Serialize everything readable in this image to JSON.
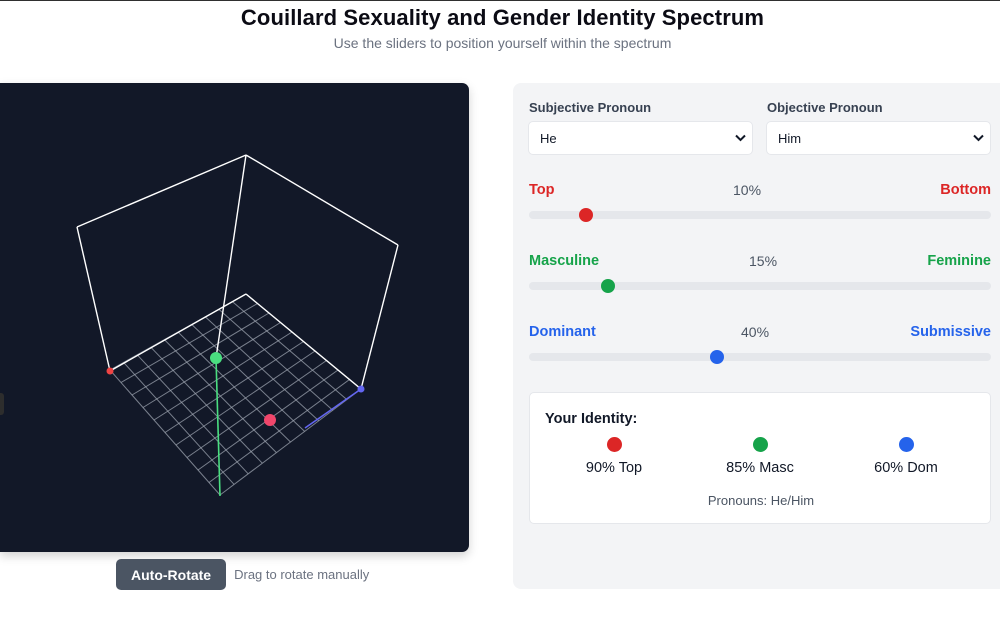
{
  "header": {
    "title": "Couillard Sexuality and Gender Identity Spectrum",
    "subtitle": "Use the sliders to position yourself within the spectrum"
  },
  "viewer": {
    "auto_rotate_label": "Auto-Rotate",
    "drag_hint": "Drag to rotate manually",
    "point_color": "#f0466b",
    "axis_colors": {
      "top_bottom": "#ef4444",
      "masc_fem": "#4ade80",
      "dom_sub": "#6366f1"
    }
  },
  "pronouns": {
    "subjective_label": "Subjective Pronoun",
    "subjective_value": "He",
    "objective_label": "Objective Pronoun",
    "objective_value": "Him"
  },
  "sliders": [
    {
      "left": "Top",
      "right": "Bottom",
      "value_text": "10%",
      "value": 0.1,
      "color": "#dc2626"
    },
    {
      "left": "Masculine",
      "right": "Feminine",
      "value_text": "15%",
      "value": 0.15,
      "color": "#16a34a"
    },
    {
      "left": "Dominant",
      "right": "Submissive",
      "value_text": "40%",
      "value": 0.4,
      "color": "#2563eb"
    }
  ],
  "identity": {
    "heading": "Your Identity:",
    "items": [
      {
        "text": "90% Top",
        "color": "#dc2626"
      },
      {
        "text": "85% Masc",
        "color": "#16a34a"
      },
      {
        "text": "60% Dom",
        "color": "#2563eb"
      }
    ],
    "pronoun_summary": "Pronouns: He/Him"
  }
}
